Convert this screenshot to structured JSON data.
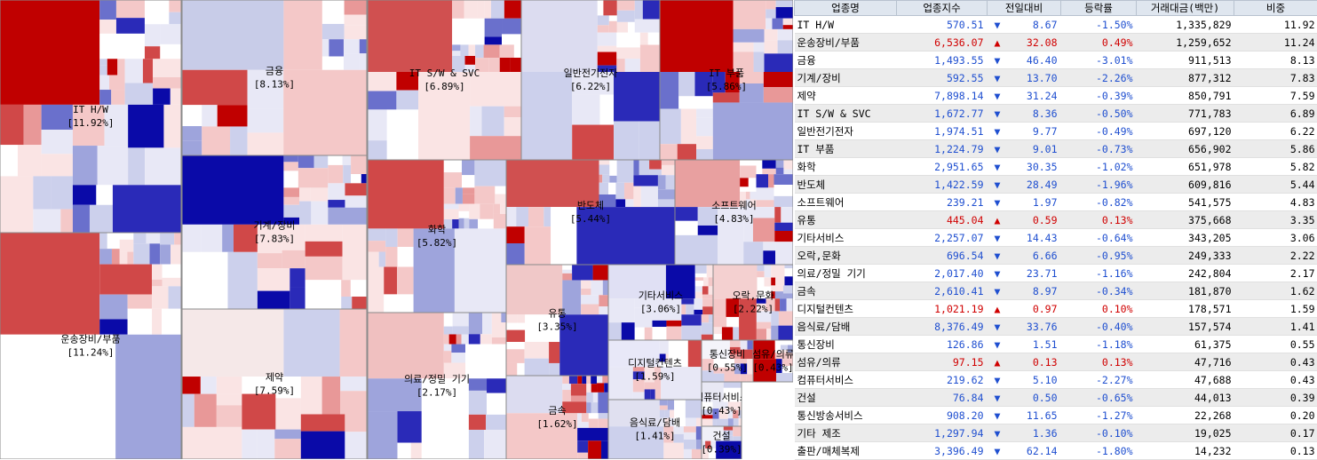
{
  "treemap": {
    "sectors": [
      {
        "name": "IT H/W",
        "share": "[11.92%]"
      },
      {
        "name": "운송장비/부품",
        "share": "[11.24%]"
      },
      {
        "name": "금융",
        "share": "[8.13%]"
      },
      {
        "name": "기계/장비",
        "share": "[7.83%]"
      },
      {
        "name": "제약",
        "share": "[7.59%]"
      },
      {
        "name": "IT S/W & SVC",
        "share": "[6.89%]"
      },
      {
        "name": "일반전기전자",
        "share": "[6.22%]"
      },
      {
        "name": "IT 부품",
        "share": "[5.86%]"
      },
      {
        "name": "화학",
        "share": "[5.82%]"
      },
      {
        "name": "반도체",
        "share": "[5.44%]"
      },
      {
        "name": "소프트웨어",
        "share": "[4.83%]"
      },
      {
        "name": "유통",
        "share": "[3.35%]"
      },
      {
        "name": "기타서비스",
        "share": "[3.06%]"
      },
      {
        "name": "오락,문화",
        "share": "[2.22%]"
      },
      {
        "name": "의료/정밀 기기",
        "share": "[2.17%]"
      },
      {
        "name": "금속",
        "share": "[1.62%]"
      },
      {
        "name": "디지털컨텐츠",
        "share": "[1.59%]"
      },
      {
        "name": "음식료/담배",
        "share": "[1.41%]"
      },
      {
        "name": "통신장비",
        "share": "[0.55%]"
      },
      {
        "name": "섬유/의류",
        "share": "[0.43%]"
      },
      {
        "name": "컴퓨터서비스",
        "share": "[0.43%]"
      },
      {
        "name": "건설",
        "share": "[0.39%]"
      }
    ]
  },
  "table": {
    "header": [
      "업종명",
      "업종지수",
      "전일대비",
      "등락률",
      "거래대금(백만)",
      "비중"
    ],
    "rows": [
      {
        "cells": [
          "IT H/W",
          "570.51",
          "▼",
          "8.67",
          "-1.50%",
          "1,335,829",
          "11.92"
        ],
        "color": "#1f4fd0"
      },
      {
        "cells": [
          "운송장비/부품",
          "6,536.07",
          "▲",
          "32.08",
          "0.49%",
          "1,259,652",
          "11.24"
        ],
        "color": "#d00000"
      },
      {
        "cells": [
          "금융",
          "1,493.55",
          "▼",
          "46.40",
          "-3.01%",
          "911,513",
          "8.13"
        ],
        "color": "#1f4fd0"
      },
      {
        "cells": [
          "기계/장비",
          "592.55",
          "▼",
          "13.70",
          "-2.26%",
          "877,312",
          "7.83"
        ],
        "color": "#1f4fd0"
      },
      {
        "cells": [
          "제약",
          "7,898.14",
          "▼",
          "31.24",
          "-0.39%",
          "850,791",
          "7.59"
        ],
        "color": "#1f4fd0"
      },
      {
        "cells": [
          "IT S/W & SVC",
          "1,672.77",
          "▼",
          "8.36",
          "-0.50%",
          "771,783",
          "6.89"
        ],
        "color": "#1f4fd0"
      },
      {
        "cells": [
          "일반전기전자",
          "1,974.51",
          "▼",
          "9.77",
          "-0.49%",
          "697,120",
          "6.22"
        ],
        "color": "#1f4fd0"
      },
      {
        "cells": [
          "IT 부품",
          "1,224.79",
          "▼",
          "9.01",
          "-0.73%",
          "656,902",
          "5.86"
        ],
        "color": "#1f4fd0"
      },
      {
        "cells": [
          "화학",
          "2,951.65",
          "▼",
          "30.35",
          "-1.02%",
          "651,978",
          "5.82"
        ],
        "color": "#1f4fd0"
      },
      {
        "cells": [
          "반도체",
          "1,422.59",
          "▼",
          "28.49",
          "-1.96%",
          "609,816",
          "5.44"
        ],
        "color": "#1f4fd0"
      },
      {
        "cells": [
          "소프트웨어",
          "239.21",
          "▼",
          "1.97",
          "-0.82%",
          "541,575",
          "4.83"
        ],
        "color": "#1f4fd0"
      },
      {
        "cells": [
          "유통",
          "445.04",
          "▲",
          "0.59",
          "0.13%",
          "375,668",
          "3.35"
        ],
        "color": "#d00000"
      },
      {
        "cells": [
          "기타서비스",
          "2,257.07",
          "▼",
          "14.43",
          "-0.64%",
          "343,205",
          "3.06"
        ],
        "color": "#1f4fd0"
      },
      {
        "cells": [
          "오락,문화",
          "696.54",
          "▼",
          "6.66",
          "-0.95%",
          "249,333",
          "2.22"
        ],
        "color": "#1f4fd0"
      },
      {
        "cells": [
          "의료/정밀 기기",
          "2,017.40",
          "▼",
          "23.71",
          "-1.16%",
          "242,804",
          "2.17"
        ],
        "color": "#1f4fd0"
      },
      {
        "cells": [
          "금속",
          "2,610.41",
          "▼",
          "8.97",
          "-0.34%",
          "181,870",
          "1.62"
        ],
        "color": "#1f4fd0"
      },
      {
        "cells": [
          "디지털컨텐츠",
          "1,021.19",
          "▲",
          "0.97",
          "0.10%",
          "178,571",
          "1.59"
        ],
        "color": "#d00000"
      },
      {
        "cells": [
          "음식료/담배",
          "8,376.49",
          "▼",
          "33.76",
          "-0.40%",
          "157,574",
          "1.41"
        ],
        "color": "#1f4fd0"
      },
      {
        "cells": [
          "통신장비",
          "126.86",
          "▼",
          "1.51",
          "-1.18%",
          "61,375",
          "0.55"
        ],
        "color": "#1f4fd0"
      },
      {
        "cells": [
          "섬유/의류",
          "97.15",
          "▲",
          "0.13",
          "0.13%",
          "47,716",
          "0.43"
        ],
        "color": "#d00000"
      },
      {
        "cells": [
          "컴퓨터서비스",
          "219.62",
          "▼",
          "5.10",
          "-2.27%",
          "47,688",
          "0.43"
        ],
        "color": "#1f4fd0"
      },
      {
        "cells": [
          "건설",
          "76.84",
          "▼",
          "0.50",
          "-0.65%",
          "44,013",
          "0.39"
        ],
        "color": "#1f4fd0"
      },
      {
        "cells": [
          "통신방송서비스",
          "908.20",
          "▼",
          "11.65",
          "-1.27%",
          "22,268",
          "0.20"
        ],
        "color": "#1f4fd0"
      },
      {
        "cells": [
          "기타 제조",
          "1,297.94",
          "▼",
          "1.36",
          "-0.10%",
          "19,025",
          "0.17"
        ],
        "color": "#1f4fd0"
      },
      {
        "cells": [
          "출판/매체복제",
          "3,396.49",
          "▼",
          "62.14",
          "-1.80%",
          "14,232",
          "0.13"
        ],
        "color": "#1f4fd0"
      }
    ]
  }
}
